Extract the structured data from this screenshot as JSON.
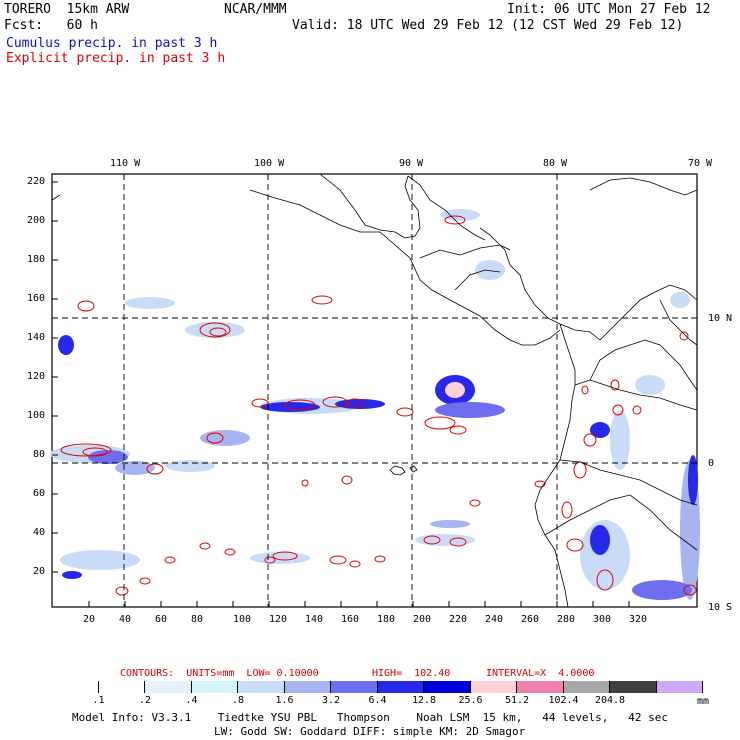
{
  "header": {
    "model": "TORERO  15km ARW",
    "org": "NCAR/MMM",
    "init": "Init: 06 UTC Mon 27 Feb 12",
    "fcst": "Fcst:   60 h",
    "valid": "Valid: 18 UTC Wed 29 Feb 12 (12 CST Wed 29 Feb 12)",
    "legend_cumulus": "Cumulus precip. in past 3 h",
    "legend_explicit": "Explicit precip. in past 3 h",
    "colors": {
      "cumulus": "#1010c8",
      "explicit": "#e00000"
    }
  },
  "map": {
    "top_lon_labels": [
      "110 W",
      "100 W",
      "90 W",
      "80 W",
      "70 W"
    ],
    "right_lat_labels": [
      "10 N",
      "0",
      "10 S"
    ],
    "y_ticks": [
      "220",
      "200",
      "180",
      "160",
      "140",
      "120",
      "100",
      "80",
      "60",
      "40",
      "20"
    ],
    "x_ticks": [
      "20",
      "40",
      "60",
      "80",
      "100",
      "120",
      "140",
      "160",
      "180",
      "200",
      "220",
      "240",
      "260",
      "280",
      "300",
      "320"
    ]
  },
  "contours_line": {
    "contours": "CONTOURS:  UNITS=mm  LOW= 0.10000",
    "high": "HIGH=  102.40",
    "interval": "INTERVAL=X  4.0000"
  },
  "colorbar": {
    "colors": [
      "#ffffff",
      "#ffffff",
      "#e6f0ff",
      "#d6f4fc",
      "#c8dcf8",
      "#a8b4f0",
      "#6e6ef0",
      "#2828e8",
      "#0000d8",
      "#ffd0d8",
      "#f080b0",
      "#a8a8a8",
      "#404040",
      "#d0a8f8"
    ],
    "labels": [
      ".1",
      ".2",
      ".4",
      ".8",
      "1.6",
      "3.2",
      "6.4",
      "12.8",
      "25.6",
      "51.2",
      "102.4",
      "204.8"
    ],
    "unit": "mm"
  },
  "footer": {
    "line1": "Model Info: V3.3.1    Tiedtke YSU PBL   Thompson    Noah LSM  15 km,   44 levels,   42 sec",
    "line2": "LW: Godd SW: Goddard DIFF: simple KM: 2D Smagor"
  }
}
